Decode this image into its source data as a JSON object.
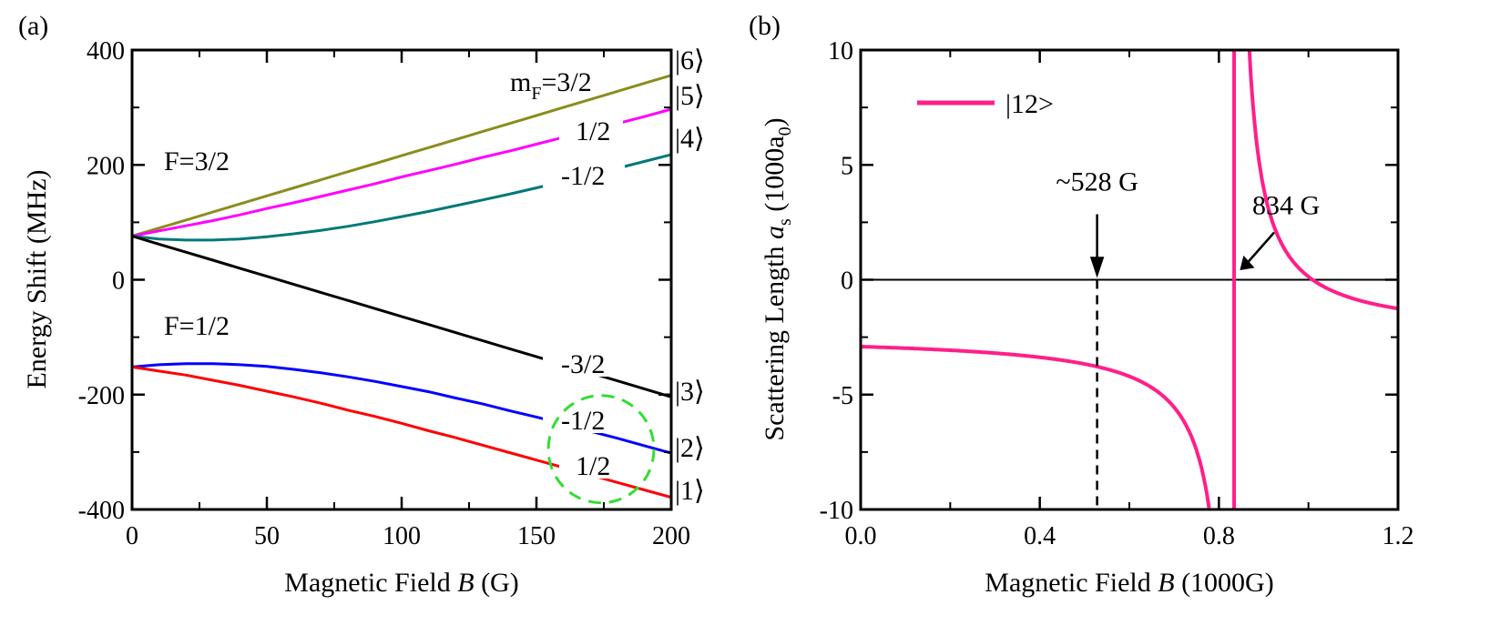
{
  "chart_data": [
    {
      "type": "line",
      "panel_label": "(a)",
      "xlabel_pre": "Magnetic Field ",
      "xlabel_var": "B",
      "xlabel_post": " (G)",
      "ylabel": "Energy Shift (MHz)",
      "xlim": [
        0,
        200
      ],
      "ylim": [
        -400,
        400
      ],
      "xticks": [
        0,
        50,
        100,
        150,
        200
      ],
      "xtick_labels": [
        "0",
        "50",
        "100",
        "150",
        "200"
      ],
      "yticks": [
        -400,
        -200,
        0,
        200,
        400
      ],
      "ytick_labels": [
        "-400",
        "-200",
        "0",
        "200",
        "400"
      ],
      "x": [
        0,
        10,
        20,
        30,
        40,
        50,
        60,
        70,
        80,
        90,
        100,
        110,
        120,
        130,
        140,
        150,
        160,
        170,
        180,
        190,
        200
      ],
      "series": [
        {
          "name": "|6⟩",
          "mF": "m_F=3/2",
          "color": "#8c8c1e",
          "values": [
            76,
            90,
            104,
            118,
            132,
            146,
            160,
            174,
            188,
            202,
            216,
            230,
            244,
            258,
            272,
            286,
            300,
            314,
            328,
            342,
            356
          ]
        },
        {
          "name": "|5⟩",
          "mF": "1/2",
          "color": "#ff00ff",
          "values": [
            76,
            85,
            94,
            103,
            113,
            124,
            134,
            145,
            156,
            167,
            179,
            190,
            201,
            213,
            224,
            236,
            248,
            260,
            272,
            284,
            297
          ]
        },
        {
          "name": "|4⟩",
          "mF": "-1/2",
          "color": "#007878",
          "values": [
            76,
            71,
            69,
            69,
            71,
            75,
            80,
            86,
            93,
            101,
            110,
            119,
            129,
            139,
            149,
            160,
            171,
            182,
            194,
            206,
            218
          ]
        },
        {
          "name": "|3⟩",
          "mF": "-3/2",
          "color": "#000000",
          "values": [
            76,
            62,
            48,
            34,
            20,
            6,
            -8,
            -22,
            -36,
            -50,
            -64,
            -78,
            -92,
            -106,
            -120,
            -134,
            -148,
            -162,
            -176,
            -190,
            -204
          ]
        },
        {
          "name": "|2⟩",
          "mF": "-1/2",
          "color": "#0000ff",
          "values": [
            -152,
            -148,
            -146,
            -146,
            -148,
            -151,
            -156,
            -162,
            -169,
            -177,
            -186,
            -195,
            -206,
            -216,
            -228,
            -239,
            -251,
            -264,
            -276,
            -289,
            -302
          ]
        },
        {
          "name": "|1⟩",
          "mF": "1/2",
          "color": "#ff0000",
          "values": [
            -152,
            -159,
            -166,
            -175,
            -184,
            -194,
            -204,
            -215,
            -227,
            -238,
            -250,
            -263,
            -275,
            -288,
            -301,
            -314,
            -327,
            -340,
            -353,
            -366,
            -379
          ]
        }
      ],
      "annotations": {
        "f32": "F=3/2",
        "f12": "F=1/2",
        "mf_prefix": "m",
        "mf_sub": "F",
        "mf_suffix": "=3/2"
      },
      "highlight_circle": {
        "center_x": 174,
        "center_y": -295,
        "color": "#33dd33"
      }
    },
    {
      "type": "line",
      "panel_label": "(b)",
      "xlabel_pre": "Magnetic Field ",
      "xlabel_var": "B",
      "xlabel_post": " (1000G)",
      "ylabel_pre": "Scattering Length ",
      "ylabel_var": "a",
      "ylabel_sub": "s",
      "ylabel_post_a": " (1000a",
      "ylabel_post_sub": "0",
      "ylabel_post_b": ")",
      "xlim": [
        0.0,
        1.2
      ],
      "ylim": [
        -10,
        10
      ],
      "xticks": [
        0.0,
        0.4,
        0.8,
        1.2
      ],
      "xtick_labels": [
        "0.0",
        "0.4",
        "0.8",
        "1.2"
      ],
      "yticks": [
        -10,
        -5,
        0,
        5,
        10
      ],
      "ytick_labels": [
        "-10",
        "-5",
        "0",
        "5",
        "10"
      ],
      "series": [
        {
          "name": "|12>",
          "color": "#ff1f8a",
          "model": {
            "abg": -1.405,
            "delta": 0.3,
            "b0": 0.834,
            "shift": -1.0
          }
        }
      ],
      "zero_crossing": {
        "x": 0.528,
        "label": "~528 G"
      },
      "resonance": {
        "x": 0.834,
        "label": "834 G"
      },
      "legend": {
        "label": "|12>",
        "position": "top-left"
      }
    }
  ]
}
